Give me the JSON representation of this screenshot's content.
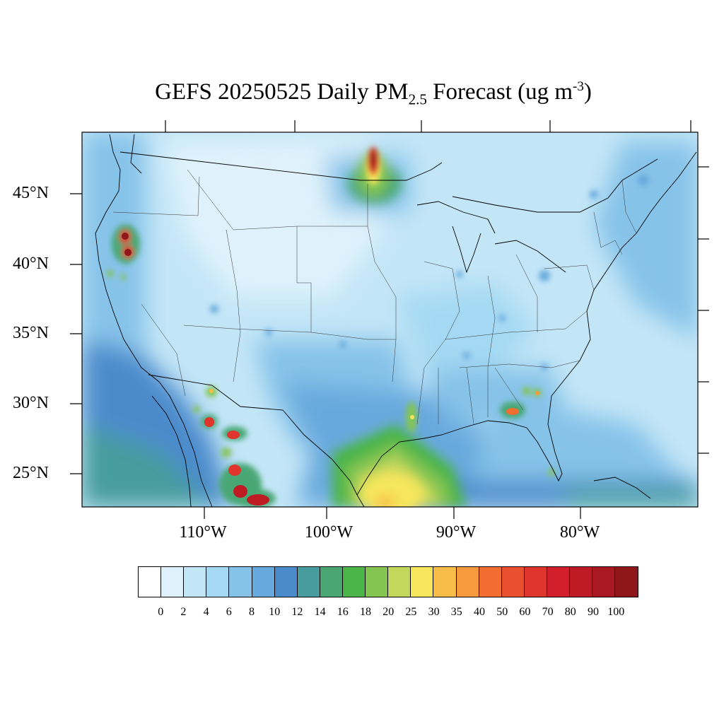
{
  "title": {
    "prefix": "GEFS 20250525 Daily PM",
    "subscript": "2.5",
    "middle": " Forecast (ug m",
    "superscript": "-3",
    "suffix": ")"
  },
  "map": {
    "projection": "lambert-conformal",
    "region": "CONUS",
    "lat_labels": [
      "45°N",
      "40°N",
      "35°N",
      "30°N",
      "25°N"
    ],
    "lon_labels": [
      "110°W",
      "100°W",
      "90°W",
      "80°W"
    ],
    "background_color": "#bfe4f6",
    "hotspots": [
      {
        "name": "Manitoba-Minnesota border plume",
        "lat": 48.5,
        "lon": -96.5,
        "max_level": "100"
      },
      {
        "name": "Northern California / Oregon",
        "lat": 42.0,
        "lon": -121.5,
        "max_level": "90"
      },
      {
        "name": "Sierra Madre Occidental, Mexico",
        "lat": 25.0,
        "lon": -106.5,
        "max_level": "90"
      },
      {
        "name": "Gulf of Mexico western coast",
        "lat": 24.0,
        "lon": -96.0,
        "max_level": "30"
      },
      {
        "name": "Georgia / Alabama",
        "lat": 31.0,
        "lon": -85.0,
        "max_level": "40"
      }
    ]
  },
  "colorbar": {
    "colors": [
      "#ffffff",
      "#dff2fb",
      "#c3e6f7",
      "#a5d9f3",
      "#86c3e9",
      "#68a9dd",
      "#4b8bcc",
      "#479c9d",
      "#4aa774",
      "#4bb549",
      "#84c552",
      "#c2d75b",
      "#f6e65c",
      "#f8bd49",
      "#f79a3e",
      "#f26d32",
      "#e8502f",
      "#df352c",
      "#d31f2b",
      "#be1b24",
      "#a91922",
      "#8f1619"
    ],
    "labels": [
      "0",
      "2",
      "4",
      "6",
      "8",
      "10",
      "12",
      "14",
      "16",
      "18",
      "20",
      "25",
      "30",
      "35",
      "40",
      "50",
      "60",
      "70",
      "80",
      "90",
      "100"
    ]
  }
}
